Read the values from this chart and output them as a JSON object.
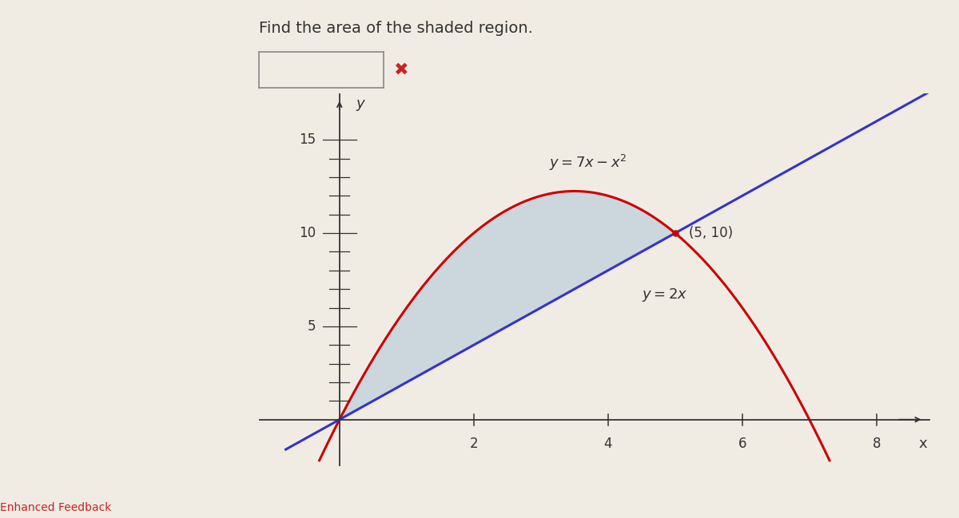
{
  "title": "Find the area of the shaded region.",
  "xlim": [
    -1.2,
    8.8
  ],
  "ylim": [
    -2.5,
    17.5
  ],
  "xticks": [
    2,
    4,
    6,
    8
  ],
  "yticks": [
    5,
    10,
    15
  ],
  "xlabel": "x",
  "ylabel": "y",
  "intersection_x": 5,
  "intersection_y": 10,
  "intersection_label": "(5, 10)",
  "label_parabola": "$y=7x-x^2$",
  "label_line": "$y=2x$",
  "parabola_color": "#cc0000",
  "line_color": "#3333cc",
  "shade_color": "#b0c4d8",
  "shade_alpha": 0.55,
  "background_color": "#f0ece4",
  "fig_background": "#f0ece4",
  "axis_color": "#333333",
  "fontsize_title": 14,
  "fontsize_labels": 13,
  "fontsize_annotation": 12,
  "fontsize_ticks": 12
}
